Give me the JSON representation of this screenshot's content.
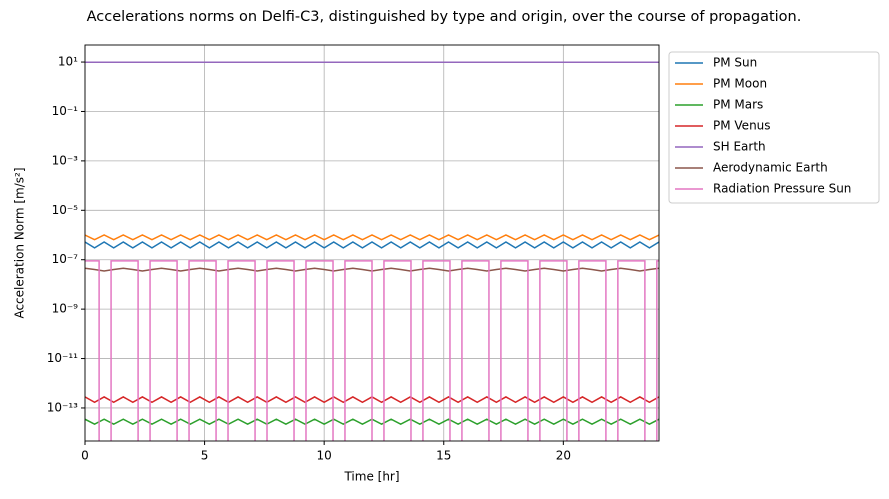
{
  "chart_data": {
    "type": "line",
    "title": "Accelerations norms on Delfi-C3, distinguished by type and origin, over the course of propagation.",
    "xlabel": "Time [hr]",
    "ylabel": "Acceleration Norm [m/s²]",
    "log_y": true,
    "grid": true,
    "legend": "outside-upper-right",
    "xlim": [
      0,
      24
    ],
    "xticks": [
      0,
      5,
      10,
      15,
      20
    ],
    "ylim": [
      4.6e-15,
      49
    ],
    "yticks": [
      {
        "value": 10,
        "label": "10¹"
      },
      {
        "value": 0.1,
        "label": "10⁻¹"
      },
      {
        "value": 0.001,
        "label": "10⁻³"
      },
      {
        "value": 1e-05,
        "label": "10⁻⁵"
      },
      {
        "value": 1e-07,
        "label": "10⁻⁷"
      },
      {
        "value": 1e-09,
        "label": "10⁻⁹"
      },
      {
        "value": 1e-11,
        "label": "10⁻¹¹"
      },
      {
        "value": 1e-13,
        "label": "10⁻¹³"
      }
    ],
    "x": [
      0,
      0.4,
      0.8,
      1.2,
      1.6,
      2,
      2.4,
      2.8,
      3.2,
      3.6,
      4,
      4.4,
      4.8,
      5.2,
      5.6,
      6,
      6.4,
      6.8,
      7.2,
      7.6,
      8,
      8.4,
      8.8,
      9.2,
      9.6,
      10,
      10.4,
      10.8,
      11.2,
      11.6,
      12,
      12.4,
      12.8,
      13.2,
      13.6,
      14,
      14.4,
      14.8,
      15.2,
      15.6,
      16,
      16.4,
      16.8,
      17.2,
      17.6,
      18,
      18.4,
      18.8,
      19.2,
      19.6,
      20,
      20.4,
      20.8,
      21.2,
      21.6,
      22,
      22.4,
      22.8,
      23.2,
      23.6,
      24
    ],
    "series": [
      {
        "name": "PM Sun",
        "color": "#1f77b4",
        "values": [
          5.2e-07,
          3e-07,
          5.2e-07,
          3e-07,
          5.2e-07,
          3e-07,
          5.2e-07,
          3e-07,
          5.2e-07,
          3e-07,
          5.2e-07,
          3e-07,
          5.2e-07,
          3e-07,
          5.2e-07,
          3e-07,
          5.2e-07,
          3e-07,
          5.2e-07,
          3e-07,
          5.2e-07,
          3e-07,
          5.2e-07,
          3e-07,
          5.2e-07,
          3e-07,
          5.2e-07,
          3e-07,
          5.2e-07,
          3e-07,
          5.2e-07,
          3e-07,
          5.2e-07,
          3e-07,
          5.2e-07,
          3e-07,
          5.2e-07,
          3e-07,
          5.2e-07,
          3e-07,
          5.2e-07,
          3e-07,
          5.2e-07,
          3e-07,
          5.2e-07,
          3e-07,
          5.2e-07,
          3e-07,
          5.2e-07,
          3e-07,
          5.2e-07,
          3e-07,
          5.2e-07,
          3e-07,
          5.2e-07,
          3e-07,
          5.2e-07,
          3e-07,
          5.2e-07,
          3e-07,
          5.2e-07
        ]
      },
      {
        "name": "PM Moon",
        "color": "#ff7f0e",
        "values": [
          1e-06,
          6.5e-07,
          1e-06,
          6.5e-07,
          1e-06,
          6.5e-07,
          1e-06,
          6.5e-07,
          1e-06,
          6.5e-07,
          1e-06,
          6.5e-07,
          1e-06,
          6.5e-07,
          1e-06,
          6.5e-07,
          1e-06,
          6.5e-07,
          1e-06,
          6.5e-07,
          1e-06,
          6.5e-07,
          1e-06,
          6.5e-07,
          1e-06,
          6.5e-07,
          1e-06,
          6.5e-07,
          1e-06,
          6.5e-07,
          1e-06,
          6.5e-07,
          1e-06,
          6.5e-07,
          1e-06,
          6.5e-07,
          1e-06,
          6.5e-07,
          1e-06,
          6.5e-07,
          1e-06,
          6.5e-07,
          1e-06,
          6.5e-07,
          1e-06,
          6.5e-07,
          1e-06,
          6.5e-07,
          1e-06,
          6.5e-07,
          1e-06,
          6.5e-07,
          1e-06,
          6.5e-07,
          1e-06,
          6.5e-07,
          1e-06,
          6.5e-07,
          1e-06,
          6.5e-07,
          1e-06
        ]
      },
      {
        "name": "PM Mars",
        "color": "#2ca02c",
        "values": [
          3.5e-14,
          2.2e-14,
          3.5e-14,
          2.2e-14,
          3.5e-14,
          2.2e-14,
          3.5e-14,
          2.2e-14,
          3.5e-14,
          2.2e-14,
          3.5e-14,
          2.2e-14,
          3.5e-14,
          2.2e-14,
          3.5e-14,
          2.2e-14,
          3.5e-14,
          2.2e-14,
          3.5e-14,
          2.2e-14,
          3.5e-14,
          2.2e-14,
          3.5e-14,
          2.2e-14,
          3.5e-14,
          2.2e-14,
          3.5e-14,
          2.2e-14,
          3.5e-14,
          2.2e-14,
          3.5e-14,
          2.2e-14,
          3.5e-14,
          2.2e-14,
          3.5e-14,
          2.2e-14,
          3.5e-14,
          2.2e-14,
          3.5e-14,
          2.2e-14,
          3.5e-14,
          2.2e-14,
          3.5e-14,
          2.2e-14,
          3.5e-14,
          2.2e-14,
          3.5e-14,
          2.2e-14,
          3.5e-14,
          2.2e-14,
          3.5e-14,
          2.2e-14,
          3.5e-14,
          2.2e-14,
          3.5e-14,
          2.2e-14,
          3.5e-14,
          2.2e-14,
          3.5e-14,
          2.2e-14,
          3.5e-14
        ]
      },
      {
        "name": "PM Venus",
        "color": "#d62728",
        "values": [
          2.8e-13,
          1.7e-13,
          2.8e-13,
          1.7e-13,
          2.8e-13,
          1.7e-13,
          2.8e-13,
          1.7e-13,
          2.8e-13,
          1.7e-13,
          2.8e-13,
          1.7e-13,
          2.8e-13,
          1.7e-13,
          2.8e-13,
          1.7e-13,
          2.8e-13,
          1.7e-13,
          2.8e-13,
          1.7e-13,
          2.8e-13,
          1.7e-13,
          2.8e-13,
          1.7e-13,
          2.8e-13,
          1.7e-13,
          2.8e-13,
          1.7e-13,
          2.8e-13,
          1.7e-13,
          2.8e-13,
          1.7e-13,
          2.8e-13,
          1.7e-13,
          2.8e-13,
          1.7e-13,
          2.8e-13,
          1.7e-13,
          2.8e-13,
          1.7e-13,
          2.8e-13,
          1.7e-13,
          2.8e-13,
          1.7e-13,
          2.8e-13,
          1.7e-13,
          2.8e-13,
          1.7e-13,
          2.8e-13,
          1.7e-13,
          2.8e-13,
          1.7e-13,
          2.8e-13,
          1.7e-13,
          2.8e-13,
          1.7e-13,
          2.8e-13,
          1.7e-13,
          2.8e-13,
          1.7e-13,
          2.8e-13
        ]
      },
      {
        "name": "SH Earth",
        "color": "#9467bd",
        "values": [
          9.8,
          9.8,
          9.8,
          9.8,
          9.8,
          9.8,
          9.8,
          9.8,
          9.8,
          9.8,
          9.8,
          9.8,
          9.8,
          9.8,
          9.8,
          9.8,
          9.8,
          9.8,
          9.8,
          9.8,
          9.8,
          9.8,
          9.8,
          9.8,
          9.8,
          9.8,
          9.8,
          9.8,
          9.8,
          9.8,
          9.8,
          9.8,
          9.8,
          9.8,
          9.8,
          9.8,
          9.8,
          9.8,
          9.8,
          9.8,
          9.8,
          9.8,
          9.8,
          9.8,
          9.8,
          9.8,
          9.8,
          9.8,
          9.8,
          9.8,
          9.8,
          9.8,
          9.8,
          9.8,
          9.8,
          9.8,
          9.8,
          9.8,
          9.8,
          9.8,
          9.8
        ]
      },
      {
        "name": "Aerodynamic Earth",
        "color": "#8c564b",
        "values": [
          4.5e-08,
          4e-08,
          3.5e-08,
          4e-08,
          4.5e-08,
          4e-08,
          3.5e-08,
          4e-08,
          4.5e-08,
          4e-08,
          3.5e-08,
          4e-08,
          4.5e-08,
          4e-08,
          3.5e-08,
          4e-08,
          4.5e-08,
          4e-08,
          3.5e-08,
          4e-08,
          4.5e-08,
          4e-08,
          3.5e-08,
          4e-08,
          4.5e-08,
          4e-08,
          3.5e-08,
          4e-08,
          4.5e-08,
          4e-08,
          3.5e-08,
          4e-08,
          4.5e-08,
          4e-08,
          3.5e-08,
          4e-08,
          4.5e-08,
          4e-08,
          3.5e-08,
          4e-08,
          4.5e-08,
          4e-08,
          3.5e-08,
          4e-08,
          4.5e-08,
          4e-08,
          3.5e-08,
          4e-08,
          4.5e-08,
          4e-08,
          3.5e-08,
          4e-08,
          4.5e-08,
          4e-08,
          3.5e-08,
          4e-08,
          4.5e-08,
          4e-08,
          3.5e-08,
          4e-08,
          4.5e-08
        ]
      },
      {
        "name": "Radiation Pressure Sun",
        "color": "#e377c2",
        "x": [
          0,
          0.59,
          0.59,
          1.09,
          1.09,
          2.22,
          2.22,
          2.72,
          2.72,
          3.85,
          3.85,
          4.35,
          4.35,
          5.48,
          5.48,
          5.98,
          5.98,
          7.11,
          7.11,
          7.61,
          7.61,
          8.74,
          8.74,
          9.24,
          9.24,
          10.37,
          10.37,
          10.87,
          10.87,
          12.0,
          12.0,
          12.5,
          12.5,
          13.63,
          13.63,
          14.13,
          14.13,
          15.26,
          15.26,
          15.76,
          15.76,
          16.89,
          16.89,
          17.39,
          17.39,
          18.52,
          18.52,
          19.02,
          19.02,
          20.15,
          20.15,
          20.65,
          20.65,
          21.78,
          21.78,
          22.28,
          22.28,
          23.41,
          23.41,
          23.91,
          23.91,
          24
        ],
        "values": [
          9e-08,
          9e-08,
          0,
          0,
          9e-08,
          9e-08,
          0,
          0,
          9e-08,
          9e-08,
          0,
          0,
          9e-08,
          9e-08,
          0,
          0,
          9e-08,
          9e-08,
          0,
          0,
          9e-08,
          9e-08,
          0,
          0,
          9e-08,
          9e-08,
          0,
          0,
          9e-08,
          9e-08,
          0,
          0,
          9e-08,
          9e-08,
          0,
          0,
          9e-08,
          9e-08,
          0,
          0,
          9e-08,
          9e-08,
          0,
          0,
          9e-08,
          9e-08,
          0,
          0,
          9e-08,
          9e-08,
          0,
          0,
          9e-08,
          9e-08,
          0,
          0,
          9e-08,
          9e-08,
          0,
          0,
          9e-08,
          9e-08
        ]
      }
    ]
  }
}
